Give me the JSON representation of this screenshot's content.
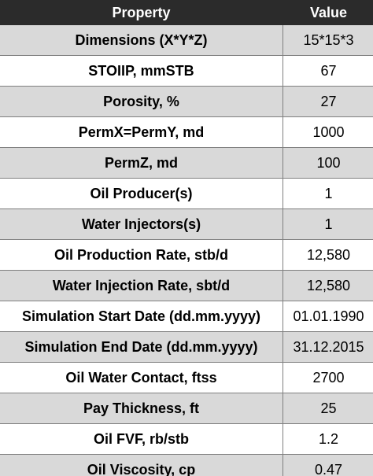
{
  "table": {
    "headers": {
      "property": "Property",
      "value": "Value"
    },
    "rows": [
      {
        "property": "Dimensions (X*Y*Z)",
        "value": "15*15*3"
      },
      {
        "property": "STOIIP, mmSTB",
        "value": "67"
      },
      {
        "property": "Porosity, %",
        "value": "27"
      },
      {
        "property": "PermX=PermY, md",
        "value": "1000"
      },
      {
        "property": "PermZ, md",
        "value": "100"
      },
      {
        "property": "Oil Producer(s)",
        "value": "1"
      },
      {
        "property": "Water Injectors(s)",
        "value": "1"
      },
      {
        "property": "Oil Production Rate, stb/d",
        "value": "12,580"
      },
      {
        "property": "Water Injection Rate, sbt/d",
        "value": "12,580"
      },
      {
        "property": "Simulation Start Date (dd.mm.yyyy)",
        "value": "01.01.1990"
      },
      {
        "property": "Simulation End Date (dd.mm.yyyy)",
        "value": "31.12.2015"
      },
      {
        "property": "Oil Water Contact, ftss",
        "value": "2700"
      },
      {
        "property": "Pay Thickness, ft",
        "value": "25"
      },
      {
        "property": "Oil FVF, rb/stb",
        "value": "1.2"
      },
      {
        "property": "Oil Viscosity, cp",
        "value": "0.47"
      }
    ]
  }
}
